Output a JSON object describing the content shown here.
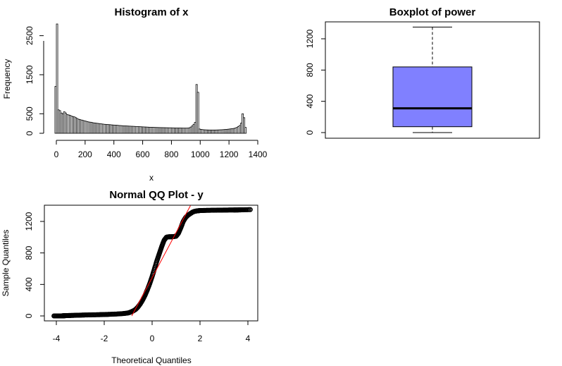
{
  "chart_data": [
    {
      "type": "bar",
      "title": "Histogram of x",
      "xlabel": "x",
      "ylabel": "Frequency",
      "xlim": [
        0,
        1400
      ],
      "ylim": [
        0,
        2800
      ],
      "x_ticks": [
        0,
        200,
        400,
        600,
        800,
        1000,
        1200,
        1400
      ],
      "y_ticks": [
        0,
        500,
        1500,
        2500
      ],
      "x_tick_labels": [
        "0",
        "200",
        "400",
        "600",
        "800",
        "1000",
        "1200",
        "1400"
      ],
      "y_tick_labels": [
        "0",
        "500",
        "1500",
        "2500"
      ],
      "bin_width": 10,
      "bin_start": -10,
      "values": [
        1200,
        2800,
        600,
        580,
        520,
        500,
        550,
        520,
        480,
        470,
        460,
        440,
        430,
        420,
        400,
        380,
        360,
        350,
        340,
        330,
        320,
        310,
        300,
        290,
        285,
        280,
        270,
        265,
        260,
        255,
        250,
        245,
        240,
        235,
        230,
        228,
        225,
        222,
        220,
        215,
        212,
        210,
        208,
        205,
        200,
        198,
        195,
        192,
        190,
        188,
        186,
        184,
        182,
        180,
        178,
        176,
        174,
        172,
        170,
        168,
        166,
        164,
        162,
        160,
        158,
        156,
        155,
        154,
        152,
        150,
        149,
        148,
        147,
        146,
        145,
        144,
        143,
        142,
        141,
        140,
        140,
        139,
        138,
        137,
        136,
        135,
        135,
        134,
        133,
        132,
        132,
        132,
        133,
        140,
        160,
        190,
        230,
        280,
        1250,
        1050,
        110,
        100,
        95,
        90,
        88,
        86,
        85,
        84,
        84,
        84,
        84,
        84,
        85,
        86,
        88,
        90,
        92,
        95,
        98,
        100,
        105,
        110,
        115,
        120,
        125,
        135,
        150,
        170,
        200,
        260,
        500,
        400,
        150
      ]
    },
    {
      "type": "box",
      "title": "Boxplot of power",
      "ylim": [
        -40,
        1400
      ],
      "y_ticks": [
        0,
        400,
        800,
        1200
      ],
      "y_tick_labels": [
        "0",
        "400",
        "800",
        "1200"
      ],
      "min": 0,
      "q1": 75,
      "median": 310,
      "q3": 840,
      "max": 1350,
      "box_color": "#8080ff"
    },
    {
      "type": "scatter",
      "title": "Normal QQ Plot - y",
      "xlabel": "Theoretical Quantiles",
      "ylabel": "Sample Quantiles",
      "xlim": [
        -4.3,
        4.3
      ],
      "ylim": [
        -60,
        1400
      ],
      "x_ticks": [
        -4,
        -2,
        0,
        2,
        4
      ],
      "y_ticks": [
        0,
        400,
        800,
        1200
      ],
      "x_tick_labels": [
        "-4",
        "-2",
        "0",
        "2",
        "4"
      ],
      "y_tick_labels": [
        "0",
        "400",
        "800",
        "1200"
      ],
      "qq_line": {
        "x": [
          -0.85,
          1.6
        ],
        "y": [
          0,
          1400
        ],
        "color": "#ff0000"
      },
      "points": {
        "x": [
          -4.1,
          -3.9,
          -3.8,
          -3.75,
          -3.7,
          -3.65,
          -3.6,
          -3.5,
          -3.4,
          -3.2,
          -3.0,
          -2.8,
          -2.5,
          -2.2,
          -2.0,
          -1.8,
          -1.5,
          -1.2,
          -1.0,
          -0.9,
          -0.8,
          -0.7,
          -0.6,
          -0.5,
          -0.4,
          -0.3,
          -0.2,
          -0.1,
          0.0,
          0.1,
          0.2,
          0.3,
          0.4,
          0.5,
          0.6,
          0.7,
          0.8,
          0.85,
          0.9,
          1.0,
          1.1,
          1.2,
          1.3,
          1.4,
          1.5,
          1.6,
          1.7,
          1.8,
          1.9,
          2.0,
          2.2,
          2.5,
          2.8,
          3.0,
          3.2,
          3.4,
          3.5,
          3.6,
          3.7,
          3.8,
          4.1
        ],
        "y": [
          0,
          0,
          0,
          1,
          2,
          3,
          4,
          5,
          6,
          8,
          10,
          12,
          14,
          16,
          18,
          20,
          24,
          30,
          38,
          48,
          62,
          80,
          110,
          150,
          200,
          260,
          330,
          410,
          500,
          600,
          700,
          790,
          880,
          960,
          1000,
          1005,
          1005,
          1006,
          1008,
          1012,
          1050,
          1120,
          1200,
          1250,
          1280,
          1300,
          1320,
          1330,
          1335,
          1338,
          1340,
          1342,
          1343,
          1344,
          1345,
          1345,
          1346,
          1346,
          1347,
          1348,
          1350
        ]
      }
    }
  ]
}
